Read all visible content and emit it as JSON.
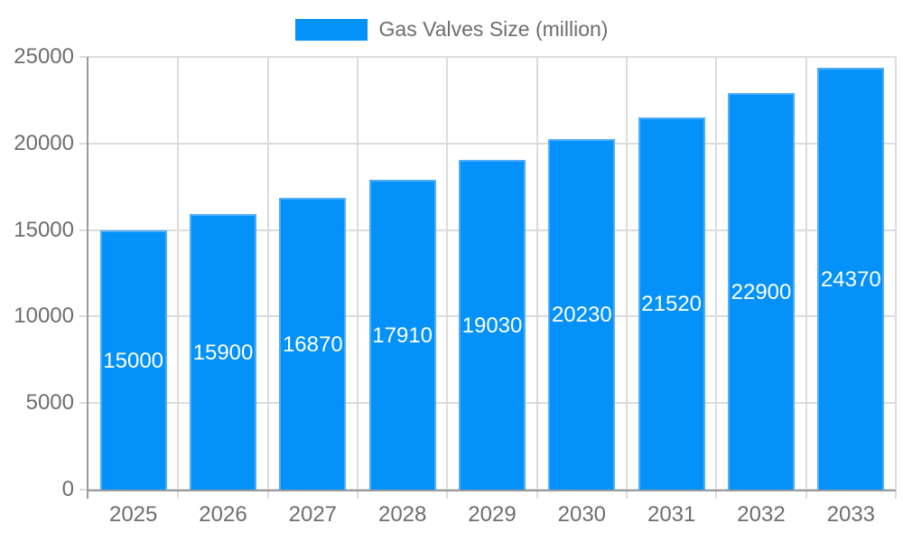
{
  "chart_data": {
    "type": "bar",
    "title": "",
    "legend_label": "Gas Valves Size (million)",
    "legend_position": "top",
    "categories": [
      "2025",
      "2026",
      "2027",
      "2028",
      "2029",
      "2030",
      "2031",
      "2032",
      "2033"
    ],
    "series": [
      {
        "name": "Gas Valves Size (million)",
        "values": [
          15000,
          15900,
          16870,
          17910,
          19030,
          20230,
          21520,
          22900,
          24370
        ]
      }
    ],
    "xlabel": "",
    "ylabel": "",
    "ylim": [
      0,
      25000
    ],
    "yticks": [
      0,
      5000,
      10000,
      15000,
      20000,
      25000
    ],
    "grid": true,
    "bar_labels_visible": true,
    "bar_label_position": "center",
    "colors": {
      "bar": "#0591fa",
      "bar_border": "#4fadfb",
      "bar_label": "#ffffff",
      "axis_text": "#6e6e6e",
      "gridline": "#dcdcdc",
      "axis_line": "#9a9a9a",
      "background": "#ffffff"
    }
  }
}
